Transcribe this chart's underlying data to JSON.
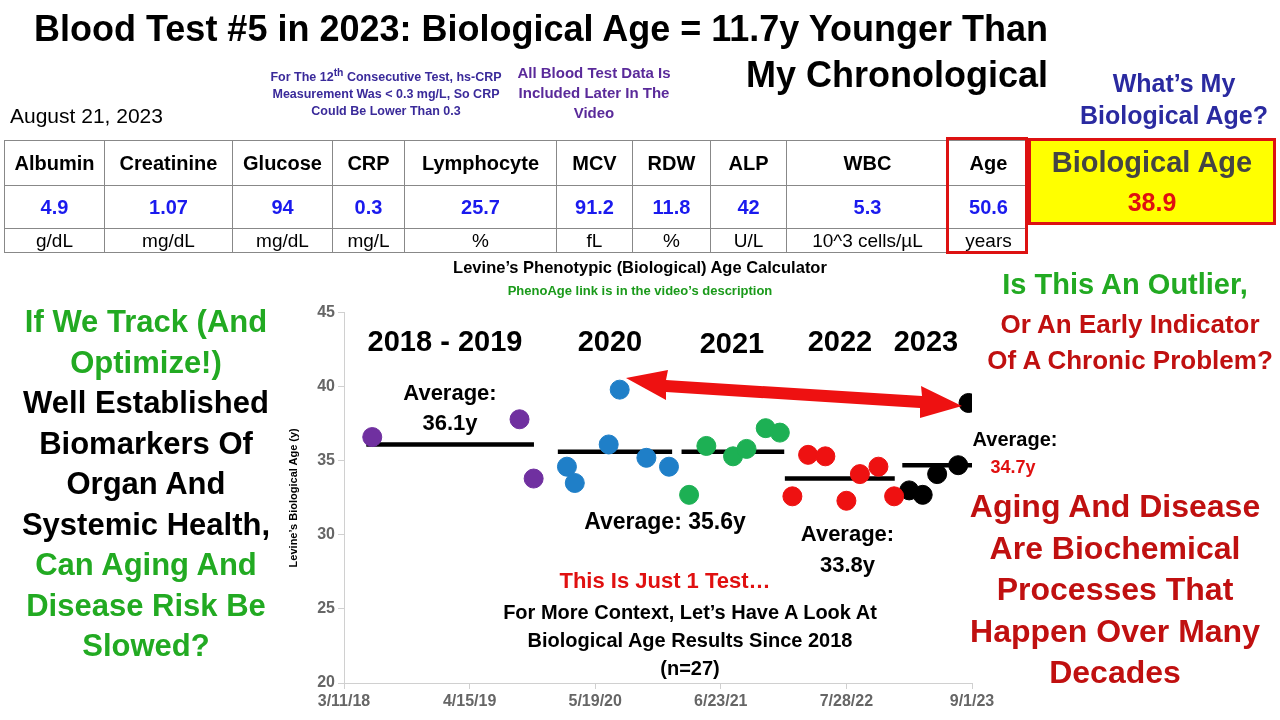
{
  "chart_data": [
    {
      "type": "other",
      "title": "Blood Test #5 in 2023: Biological Age = 11.7y Younger Than My Chronological",
      "annotations": [
        "August 21, 2023",
        "For The 12$^{th}$ Consecutive Test, hs-CRP Measurement Was < 0.3 mg/L, So CRP Could Be Lower Than 0.3",
        "All Blood Test Data Is Included Later In The Video",
        "What’s My Biological Age?",
        "If We Track (And Optimize!)",
        "Well Established Biomarkers Of Organ And Systemic Health,",
        "Can Aging And Disease Risk Be Slowed?",
        "Is This An Outlier,",
        "Or An Early Indicator Of A Chronic Problem?",
        "Aging And Disease Are Biochemical Processes That Happen Over Many Decades"
      ]
    },
    {
      "type": "other",
      "categories": [
        "Albumin",
        "Creatinine",
        "Glucose",
        "CRP",
        "Lymphocyte",
        "MCV",
        "RDW",
        "ALP",
        "WBC",
        "Age",
        "Biological Age"
      ],
      "values": [
        4.9,
        1.07,
        94,
        0.3,
        25.7,
        91.2,
        11.8,
        42,
        5.3,
        50.6,
        38.9
      ],
      "data_labels": true,
      "annotations": [
        "g/dL",
        "mg/dL",
        "mg/dL",
        "mg/L",
        "%",
        "fL",
        "%",
        "U/L",
        "10^3 cells/µL",
        "years"
      ]
    },
    {
      "type": "scatter",
      "title": "Levine’s Phenotypic (Biological) Age Calculator",
      "subtitle": "PhenoAge link is in the video’s description",
      "ylabel": "Levine’s Biological Age (y)",
      "marker": "circle",
      "legend": false,
      "grid": false,
      "xlim": [
        "2018-03-11",
        "2023-09-01"
      ],
      "xticks": [
        {
          "value": "2018-03-11",
          "label": "3/11/18"
        },
        {
          "value": "2019-04-15",
          "label": "4/15/19"
        },
        {
          "value": "2020-05-19",
          "label": "5/19/20"
        },
        {
          "value": "2021-06-23",
          "label": "6/23/21"
        },
        {
          "value": "2022-07-28",
          "label": "7/28/22"
        },
        {
          "value": "2023-09-01",
          "label": "9/1/23"
        }
      ],
      "ylim": [
        20,
        45
      ],
      "yticks": [
        20,
        25,
        30,
        35,
        40,
        45
      ],
      "series": [
        {
          "color": "#7030a0",
          "x": [
            "2018-06-09",
            "2019-09-21",
            "2019-11-05"
          ],
          "values": [
            36.6,
            37.8,
            33.8
          ]
        },
        {
          "color": "#1f7fc8",
          "x": [
            "2020-02-19",
            "2020-03-15",
            "2020-07-01",
            "2020-08-05",
            "2020-10-29",
            "2021-01-09"
          ],
          "values": [
            34.6,
            33.5,
            36.1,
            39.8,
            35.2,
            34.6
          ]
        },
        {
          "color": "#1db054",
          "x": [
            "2021-03-14",
            "2021-05-08",
            "2021-08-01",
            "2021-09-13",
            "2021-11-13",
            "2021-12-28"
          ],
          "values": [
            32.7,
            36.0,
            35.3,
            35.8,
            37.2,
            36.9
          ]
        },
        {
          "color": "#ee1111",
          "x": [
            "2022-02-06",
            "2022-03-28",
            "2022-05-22",
            "2022-07-28",
            "2022-09-09",
            "2022-11-07",
            "2022-12-27"
          ],
          "values": [
            32.6,
            35.4,
            35.3,
            32.3,
            34.1,
            34.6,
            32.6
          ]
        },
        {
          "color": "#000000",
          "x": [
            "2023-02-13",
            "2023-03-28",
            "2023-05-13",
            "2023-07-19",
            "2023-08-21"
          ],
          "values": [
            33.0,
            32.7,
            34.1,
            34.7,
            38.9
          ]
        },
        {
          "type": "line",
          "marker": "none",
          "color": "#000000",
          "x": [
            "2018-05-21",
            "2019-11-06"
          ],
          "values": [
            36.1,
            36.1
          ]
        },
        {
          "type": "line",
          "marker": "none",
          "color": "#000000",
          "x": [
            "2020-01-21",
            "2021-01-19"
          ],
          "values": [
            35.6,
            35.6
          ]
        },
        {
          "type": "line",
          "marker": "none",
          "color": "#000000",
          "x": [
            "2021-02-18",
            "2022-01-11"
          ],
          "values": [
            35.6,
            35.6
          ]
        },
        {
          "type": "line",
          "marker": "none",
          "color": "#000000",
          "x": [
            "2022-01-13",
            "2022-12-29"
          ],
          "values": [
            33.8,
            33.8
          ]
        },
        {
          "type": "line",
          "marker": "none",
          "color": "#000000",
          "x": [
            "2023-01-22",
            "2023-09-01"
          ],
          "values": [
            34.7,
            34.7
          ]
        }
      ],
      "annotations": [
        "2018 - 2019",
        "2020",
        "2021",
        "2022",
        "2023",
        "Average: 36.1y",
        "Average: 35.6y",
        "Average: 33.8y",
        "Average:",
        "34.7y",
        "This Is Just 1 Test…",
        "For More Context, Let’s Have A Look At Biological Age Results Since 2018 (n=27)"
      ]
    }
  ]
}
